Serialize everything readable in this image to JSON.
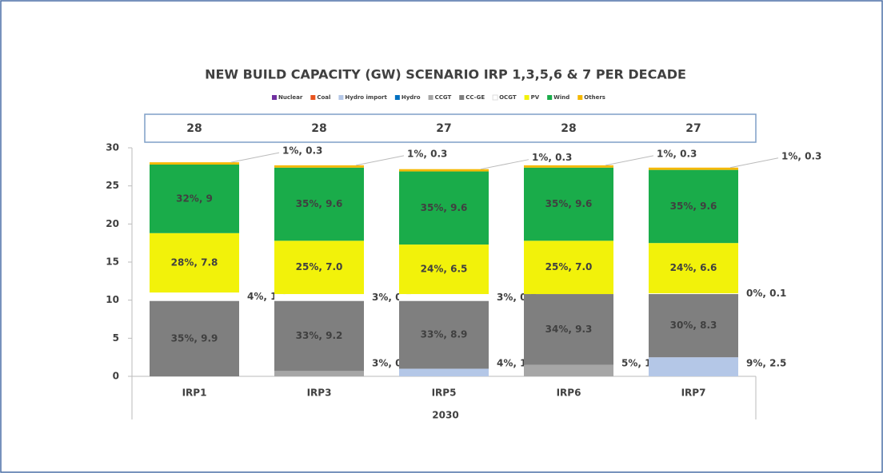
{
  "chart_data": {
    "type": "stacked-bar",
    "title": "NEW BUILD CAPACITY (GW) SCENARIO IRP 1,3,5,6 & 7 PER DECADE",
    "x_group_label": "2030",
    "categories": [
      "IRP1",
      "IRP3",
      "IRP5",
      "IRP6",
      "IRP7"
    ],
    "totals": [
      28,
      28,
      27,
      28,
      27
    ],
    "ylim": [
      0,
      30
    ],
    "yticks": [
      0,
      5,
      10,
      15,
      20,
      25,
      30
    ],
    "series": [
      {
        "name": "Nuclear",
        "color": "#7030a0",
        "values": [
          null,
          null,
          null,
          null,
          null
        ],
        "value_labels": [
          null,
          null,
          null,
          null,
          null
        ]
      },
      {
        "name": "Coal",
        "color": "#e8541e",
        "values": [
          null,
          null,
          null,
          null,
          null
        ],
        "value_labels": [
          null,
          null,
          null,
          null,
          null
        ]
      },
      {
        "name": "Hydro import",
        "color": "#b4c7e7",
        "values": [
          null,
          null,
          1,
          null,
          2.5
        ],
        "value_labels": [
          null,
          null,
          "4%, 1",
          null,
          "9%, 2.5"
        ]
      },
      {
        "name": "Hydro",
        "color": "#0070c0",
        "values": [
          null,
          null,
          null,
          null,
          null
        ],
        "value_labels": [
          null,
          null,
          null,
          null,
          null
        ]
      },
      {
        "name": "CCGT",
        "color": "#a6a6a6",
        "values": [
          null,
          0.7,
          null,
          1.5,
          null
        ],
        "value_labels": [
          null,
          "3%, 0.7",
          null,
          "5%, 1.5",
          null
        ]
      },
      {
        "name": "CC-GE",
        "color": "#7f7f7f",
        "values": [
          9.9,
          9.2,
          8.9,
          9.3,
          8.3
        ],
        "value_labels": [
          "35%, 9.9",
          "33%, 9.2",
          "33%, 8.9",
          "34%, 9.3",
          "30%, 8.3"
        ]
      },
      {
        "name": "OCGT",
        "color": "#ffffff",
        "values": [
          1.1,
          0.9,
          0.9,
          null,
          0.1
        ],
        "value_labels": [
          "4%, 1.1",
          "3%, 0.9",
          "3%, 0.9",
          null,
          "0%, 0.1"
        ]
      },
      {
        "name": "PV",
        "color": "#f2f20a",
        "values": [
          7.8,
          7.0,
          6.5,
          7.0,
          6.6
        ],
        "value_labels": [
          "28%, 7.8",
          "25%, 7.0",
          "24%, 6.5",
          "25%, 7.0",
          "24%, 6.6"
        ]
      },
      {
        "name": "Wind",
        "color": "#1aac4a",
        "values": [
          9,
          9.6,
          9.6,
          9.6,
          9.6
        ],
        "value_labels": [
          "32%, 9",
          "35%, 9.6",
          "35%, 9.6",
          "35%, 9.6",
          "35%, 9.6"
        ]
      },
      {
        "name": "Others",
        "color": "#f5b800",
        "values": [
          0.3,
          0.3,
          0.3,
          0.3,
          0.3
        ],
        "value_labels": [
          "1%, 0.3",
          "1%, 0.3",
          "1%, 0.3",
          "1%, 0.3",
          "1%, 0.3"
        ]
      }
    ]
  }
}
